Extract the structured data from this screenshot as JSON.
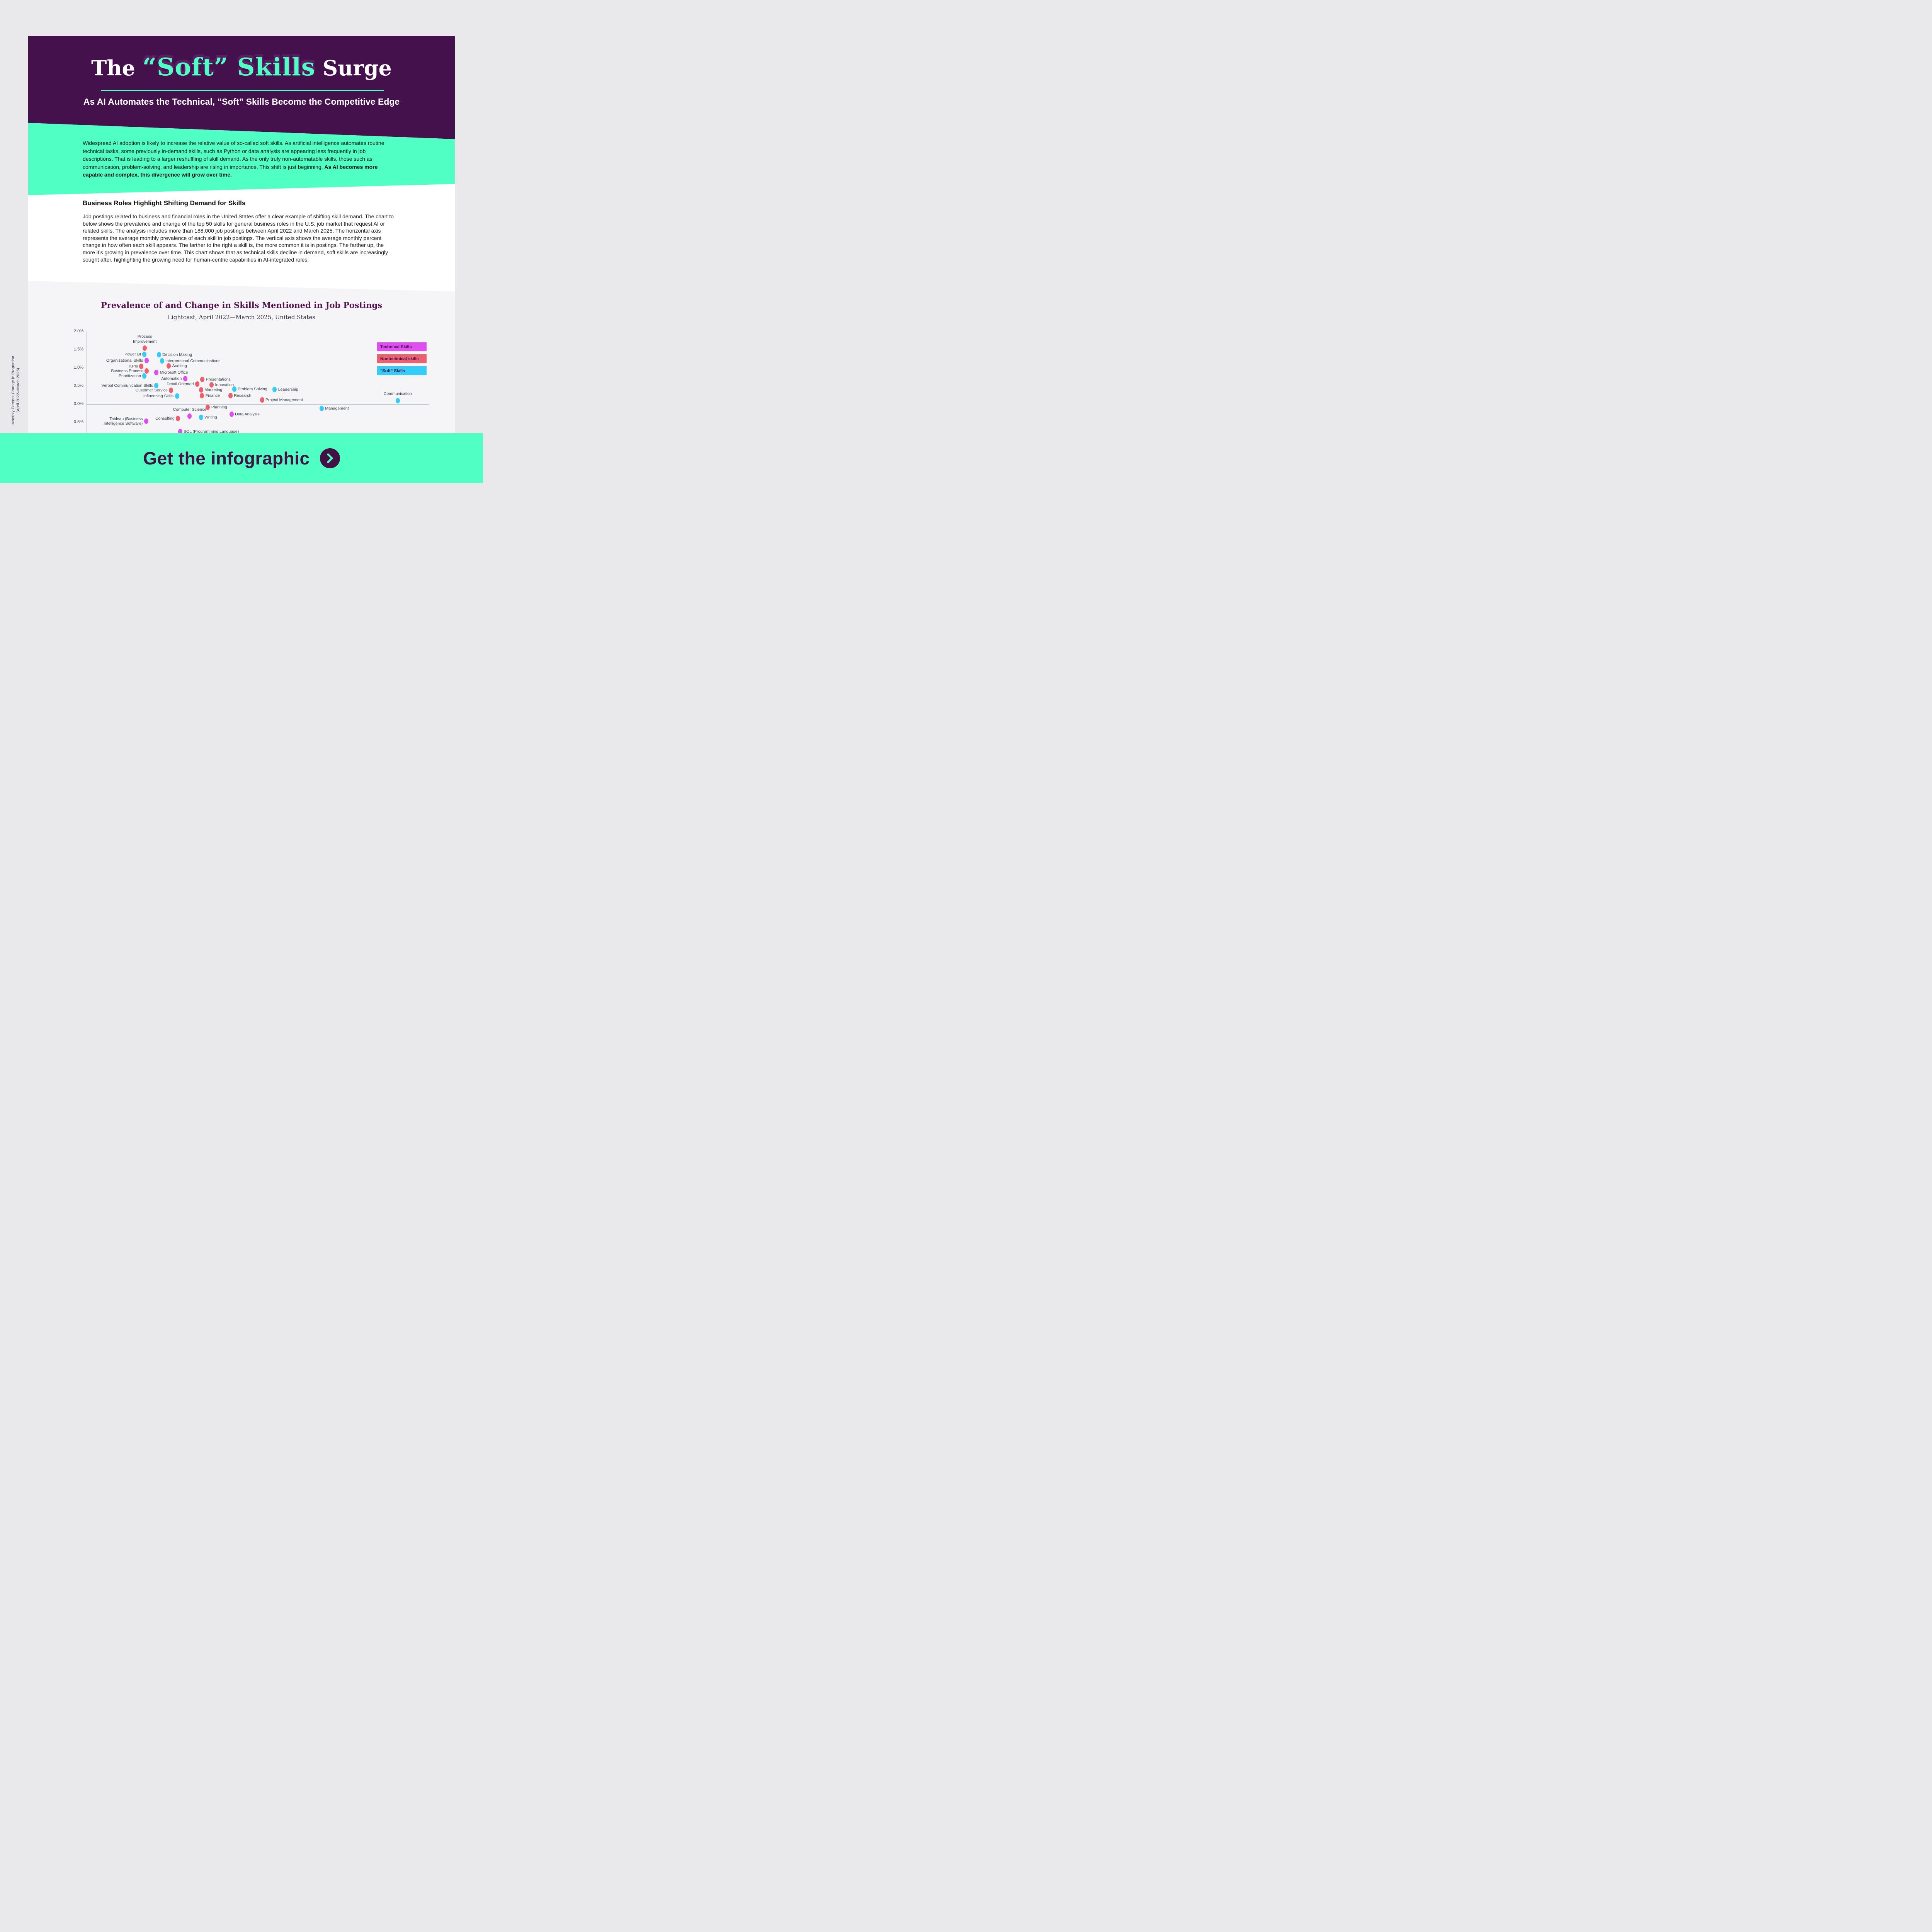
{
  "header": {
    "title_pre": "The",
    "title_highlight": "“Soft” Skills",
    "title_post": "Surge",
    "subtitle": "As AI Automates the Technical, “Soft” Skills Become the Competitive Edge"
  },
  "intro": {
    "text_main": "Widespread AI adoption is likely to increase the relative value of so-called soft skills. As artificial intelligence automates routine technical tasks, some previously in-demand skills, such as Python or data analysis are appearing less frequently in job descriptions. That is leading to a larger reshuffling of skill demand. As the only truly non-automatable skills, those such as communication, problem-solving, and leadership are rising in importance. This shift is just beginning. ",
    "text_bold": "As AI becomes more capable and complex, this divergence will grow over time."
  },
  "section": {
    "heading": "Business Roles Highlight Shifting Demand for Skills",
    "body": "Job postings related to business and financial roles in the United States offer a clear example of shifting skill demand. The chart to below shows the prevalence and change of the top 50 skills for general business roles in the U.S. job market that request AI or related skills. The analysis includes more than 188,000 job postings between April 2022 and March 2025. The horizontal axis represents the average monthly prevalence of each skill in job postings. The vertical axis shows the average monthly percent change in how often each skill appears. The farther to the right a skill is, the more common it is in postings. The farther up, the more it’s growing in prevalence over time. This chart shows that as technical skills decline in demand, soft skills are increasingly sought after, highlighting the growing need for human-centric capabilities in AI-integrated roles."
  },
  "footer": {
    "cta": "Get the infographic"
  },
  "colors": {
    "purple": "#45114d",
    "green": "#4fffc4",
    "technical": "#e14ef0",
    "nontechnical": "#ee5f6e",
    "soft": "#35ccf5",
    "chart_text": "#39434f"
  },
  "chart_data": {
    "type": "scatter",
    "title": "Prevalence of and Change in Skills Mentioned in Job Postings",
    "subtitle": "Lightcast, April 2022—March 2025, United States",
    "ylabel_line1": "Monthly Percent Change in Proportion",
    "ylabel_line2": "(April 2022–March 2025)",
    "y_ticks": [
      "2.0%",
      "1.5%",
      "1.0%",
      "0.5%",
      "0.0%",
      "-0.5%"
    ],
    "y_tick_values": [
      2.0,
      1.5,
      1.0,
      0.5,
      0.0,
      -0.5
    ],
    "ylim": [
      -0.85,
      2.0
    ],
    "grid": "zero-line-only",
    "legend_position": "upper-right",
    "legend": [
      {
        "label": "Technical Skills",
        "key": "technical"
      },
      {
        "label": "Nontechnical skills",
        "key": "nontechnical"
      },
      {
        "label": "“Soft” Skills",
        "key": "soft"
      }
    ],
    "x_axis_note": "x = relative prevalence in postings (axis labels not visible in image); x_frac is fraction of plot width",
    "series": [
      {
        "name": "Technical Skills",
        "key": "technical",
        "points": [
          {
            "label": "Organizational Skills",
            "x_frac": 0.176,
            "y_pct": 1.2,
            "side": "left"
          },
          {
            "label": "Microsoft Office",
            "x_frac": 0.205,
            "y_pct": 0.87,
            "side": "right"
          },
          {
            "label": "Automation",
            "x_frac": 0.289,
            "y_pct": 0.7,
            "side": "left"
          },
          {
            "label": "Data Analysis",
            "x_frac": 0.424,
            "y_pct": -0.28,
            "side": "right"
          },
          {
            "label": "Computer Science",
            "x_frac": 0.302,
            "y_pct": -0.33,
            "side": "above"
          },
          {
            "label": "Tableau (Business Intelligence Software)",
            "lines": [
              "Tableau (Business",
              "Intelligence Software)"
            ],
            "x_frac": 0.175,
            "y_pct": -0.47,
            "side": "left"
          },
          {
            "label": "SQL (Programming Language)",
            "x_frac": 0.274,
            "y_pct": -0.76,
            "side": "right"
          }
        ]
      },
      {
        "name": "Nontechnical skills",
        "key": "nontechnical",
        "points": [
          {
            "label": "Process Improvement",
            "lines": [
              "Process",
              "Improvement"
            ],
            "x_frac": 0.171,
            "y_pct": 1.54,
            "side": "above"
          },
          {
            "label": "KPIs",
            "x_frac": 0.161,
            "y_pct": 1.04,
            "side": "left"
          },
          {
            "label": "Auditing",
            "x_frac": 0.241,
            "y_pct": 1.05,
            "side": "right"
          },
          {
            "label": "Business Process",
            "x_frac": 0.177,
            "y_pct": 0.91,
            "side": "left"
          },
          {
            "label": "Presentations",
            "x_frac": 0.339,
            "y_pct": 0.68,
            "side": "right"
          },
          {
            "label": "Detail Oriented",
            "x_frac": 0.324,
            "y_pct": 0.55,
            "side": "left"
          },
          {
            "label": "Innovation",
            "x_frac": 0.366,
            "y_pct": 0.53,
            "side": "right"
          },
          {
            "label": "Customer Service",
            "x_frac": 0.248,
            "y_pct": 0.38,
            "side": "left"
          },
          {
            "label": "Marketing",
            "x_frac": 0.335,
            "y_pct": 0.39,
            "side": "right"
          },
          {
            "label": "Finance",
            "x_frac": 0.338,
            "y_pct": 0.23,
            "side": "right"
          },
          {
            "label": "Research",
            "x_frac": 0.421,
            "y_pct": 0.23,
            "side": "right"
          },
          {
            "label": "Project Management",
            "x_frac": 0.513,
            "y_pct": 0.12,
            "side": "right"
          },
          {
            "label": "Planning",
            "x_frac": 0.355,
            "y_pct": -0.08,
            "side": "right"
          },
          {
            "label": "Consulting",
            "x_frac": 0.268,
            "y_pct": -0.39,
            "side": "left"
          }
        ]
      },
      {
        "name": "“Soft” Skills",
        "key": "soft",
        "points": [
          {
            "label": "Power BI",
            "x_frac": 0.17,
            "y_pct": 1.37,
            "side": "left"
          },
          {
            "label": "Decision Making",
            "x_frac": 0.212,
            "y_pct": 1.36,
            "side": "right"
          },
          {
            "label": "Interpersonal Communications",
            "x_frac": 0.221,
            "y_pct": 1.19,
            "side": "right"
          },
          {
            "label": "Prioritization",
            "x_frac": 0.17,
            "y_pct": 0.78,
            "side": "left"
          },
          {
            "label": "Verbal Communication Skills",
            "x_frac": 0.205,
            "y_pct": 0.51,
            "side": "left"
          },
          {
            "label": "Problem Solving",
            "x_frac": 0.432,
            "y_pct": 0.41,
            "side": "right"
          },
          {
            "label": "Leadership",
            "x_frac": 0.55,
            "y_pct": 0.4,
            "side": "right"
          },
          {
            "label": "Influencing Skills",
            "x_frac": 0.265,
            "y_pct": 0.22,
            "side": "left"
          },
          {
            "label": "Communication",
            "x_frac": 0.909,
            "y_pct": 0.1,
            "side": "above"
          },
          {
            "label": "Management",
            "x_frac": 0.687,
            "y_pct": -0.12,
            "side": "right"
          },
          {
            "label": "Writing",
            "x_frac": 0.335,
            "y_pct": -0.36,
            "side": "right"
          }
        ]
      }
    ]
  }
}
